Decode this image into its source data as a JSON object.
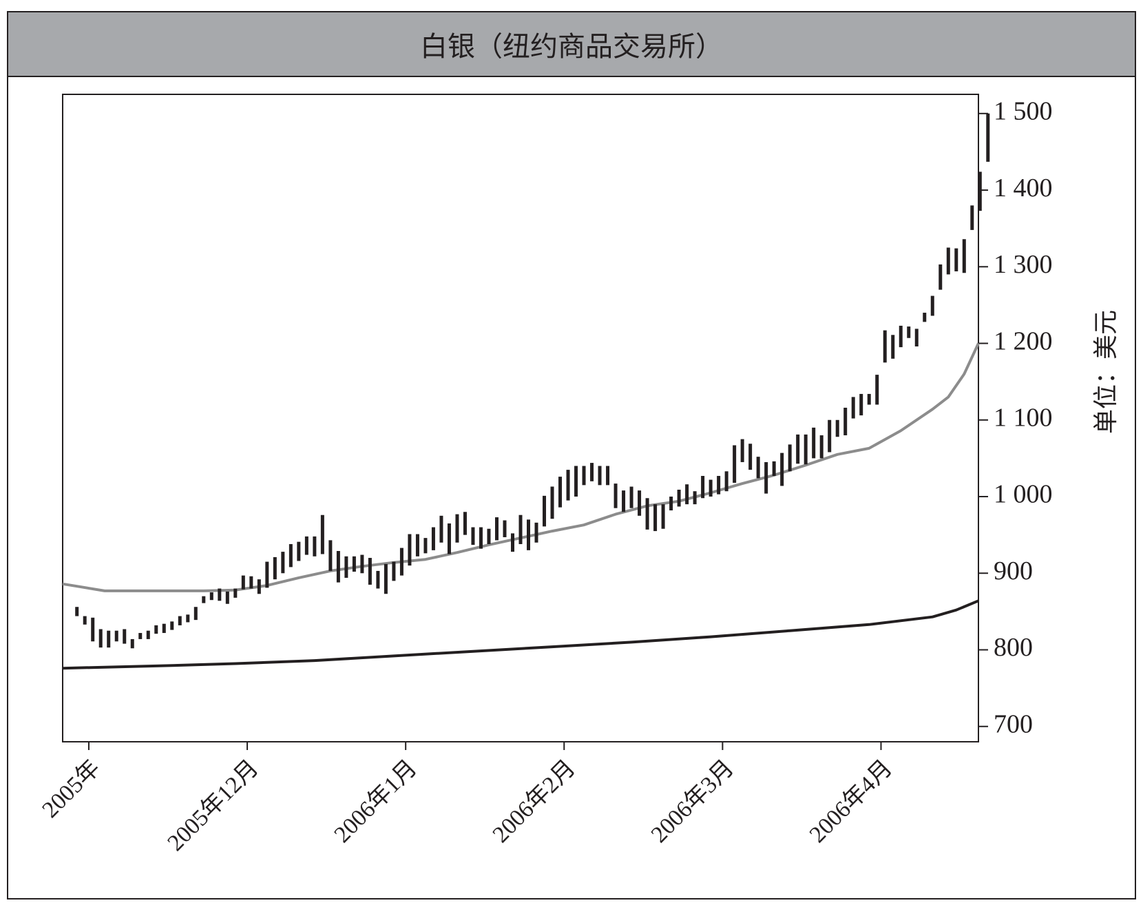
{
  "title": "白银（纽约商品交易所）",
  "colors": {
    "frame": "#231f20",
    "title_bg": "#a7a9ac",
    "ma_short": "#8c8c8c",
    "ma_long": "#231f20",
    "bars": "#231f20"
  },
  "chart_data": {
    "type": "line",
    "title": "白银（纽约商品交易所）",
    "ylabel": "单位：美元",
    "xlabel": "",
    "y_axis_side": "right",
    "ylim": [
      680,
      1525
    ],
    "y_ticks": [
      700,
      800,
      900,
      1000,
      1100,
      1200,
      1300,
      1400,
      1500
    ],
    "y_tick_labels": [
      "700",
      "800",
      "900",
      "1 000",
      "1 100",
      "1 200",
      "1 300",
      "1 400",
      "1 500"
    ],
    "x_ticks": [
      "2005年",
      "2005年12月",
      "2006年1月",
      "2006年2月",
      "2006年3月",
      "2006年4月"
    ],
    "x_tick_positions": [
      1.5,
      21.5,
      41.5,
      61.5,
      81.5,
      101.5
    ],
    "xlim": [
      -1.8,
      113.8
    ],
    "grid": false,
    "price_bars": {
      "name": "",
      "style": "high-low",
      "high": [
        856,
        844,
        842,
        827,
        825,
        825,
        827,
        814,
        822,
        825,
        832,
        834,
        837,
        844,
        846,
        856,
        870,
        875,
        880,
        876,
        880,
        897,
        896,
        892,
        915,
        921,
        928,
        938,
        941,
        948,
        948,
        976,
        943,
        929,
        922,
        922,
        924,
        920,
        903,
        912,
        915,
        933,
        951,
        951,
        946,
        960,
        975,
        965,
        977,
        980,
        960,
        960,
        958,
        973,
        969,
        952,
        976,
        970,
        966,
        1001,
        1013,
        1026,
        1035,
        1040,
        1040,
        1044,
        1040,
        1040,
        1017,
        1008,
        1013,
        1008,
        998,
        990,
        990,
        1000,
        1009,
        1016,
        1007,
        1027,
        1022,
        1027,
        1033,
        1067,
        1075,
        1069,
        1052,
        1045,
        1046,
        1057,
        1068,
        1081,
        1081,
        1090,
        1080,
        1100,
        1100,
        1116,
        1130,
        1134,
        1134,
        1159,
        1217,
        1211,
        1223,
        1222,
        1219,
        1240,
        1262,
        1303,
        1325,
        1324,
        1336,
        1380,
        1424,
        1500
      ],
      "low": [
        844,
        833,
        811,
        803,
        803,
        811,
        808,
        802,
        814,
        814,
        821,
        822,
        826,
        832,
        836,
        839,
        861,
        865,
        864,
        860,
        868,
        879,
        880,
        873,
        881,
        892,
        900,
        908,
        916,
        924,
        922,
        925,
        903,
        888,
        894,
        902,
        900,
        885,
        880,
        873,
        890,
        897,
        910,
        922,
        926,
        930,
        940,
        925,
        940,
        950,
        937,
        932,
        938,
        943,
        947,
        928,
        938,
        930,
        940,
        961,
        971,
        986,
        995,
        1000,
        1015,
        1020,
        1015,
        1015,
        985,
        980,
        985,
        975,
        957,
        955,
        958,
        982,
        987,
        990,
        990,
        998,
        1000,
        1003,
        1007,
        1018,
        1045,
        1035,
        1024,
        1004,
        1027,
        1014,
        1033,
        1043,
        1042,
        1050,
        1050,
        1058,
        1078,
        1080,
        1102,
        1106,
        1120,
        1120,
        1175,
        1180,
        1195,
        1207,
        1196,
        1228,
        1236,
        1270,
        1290,
        1294,
        1292,
        1348,
        1373,
        1437
      ]
    },
    "series": [
      {
        "name": "",
        "x": [
          -1.8,
          0,
          3.5,
          8,
          12,
          16,
          20,
          24,
          28,
          32,
          36,
          40,
          44,
          48,
          52,
          56,
          60,
          64,
          68,
          72,
          76,
          80,
          84,
          88,
          92,
          96,
          100,
          104,
          108,
          110,
          112,
          113.8
        ],
        "values": [
          886,
          883,
          877,
          877,
          877,
          877,
          878,
          884,
          894,
          903,
          909,
          914,
          918,
          927,
          937,
          946,
          955,
          963,
          977,
          988,
          994,
          1005,
          1017,
          1028,
          1041,
          1055,
          1063,
          1086,
          1114,
          1130,
          1160,
          1200
        ]
      },
      {
        "name": "",
        "x": [
          -1.8,
          10,
          20,
          30,
          40,
          50,
          60,
          70,
          80,
          90,
          100,
          108,
          111,
          113.8
        ],
        "values": [
          776,
          779,
          782,
          786,
          792,
          798,
          804,
          810,
          817,
          825,
          833,
          843,
          852,
          864
        ]
      }
    ]
  }
}
